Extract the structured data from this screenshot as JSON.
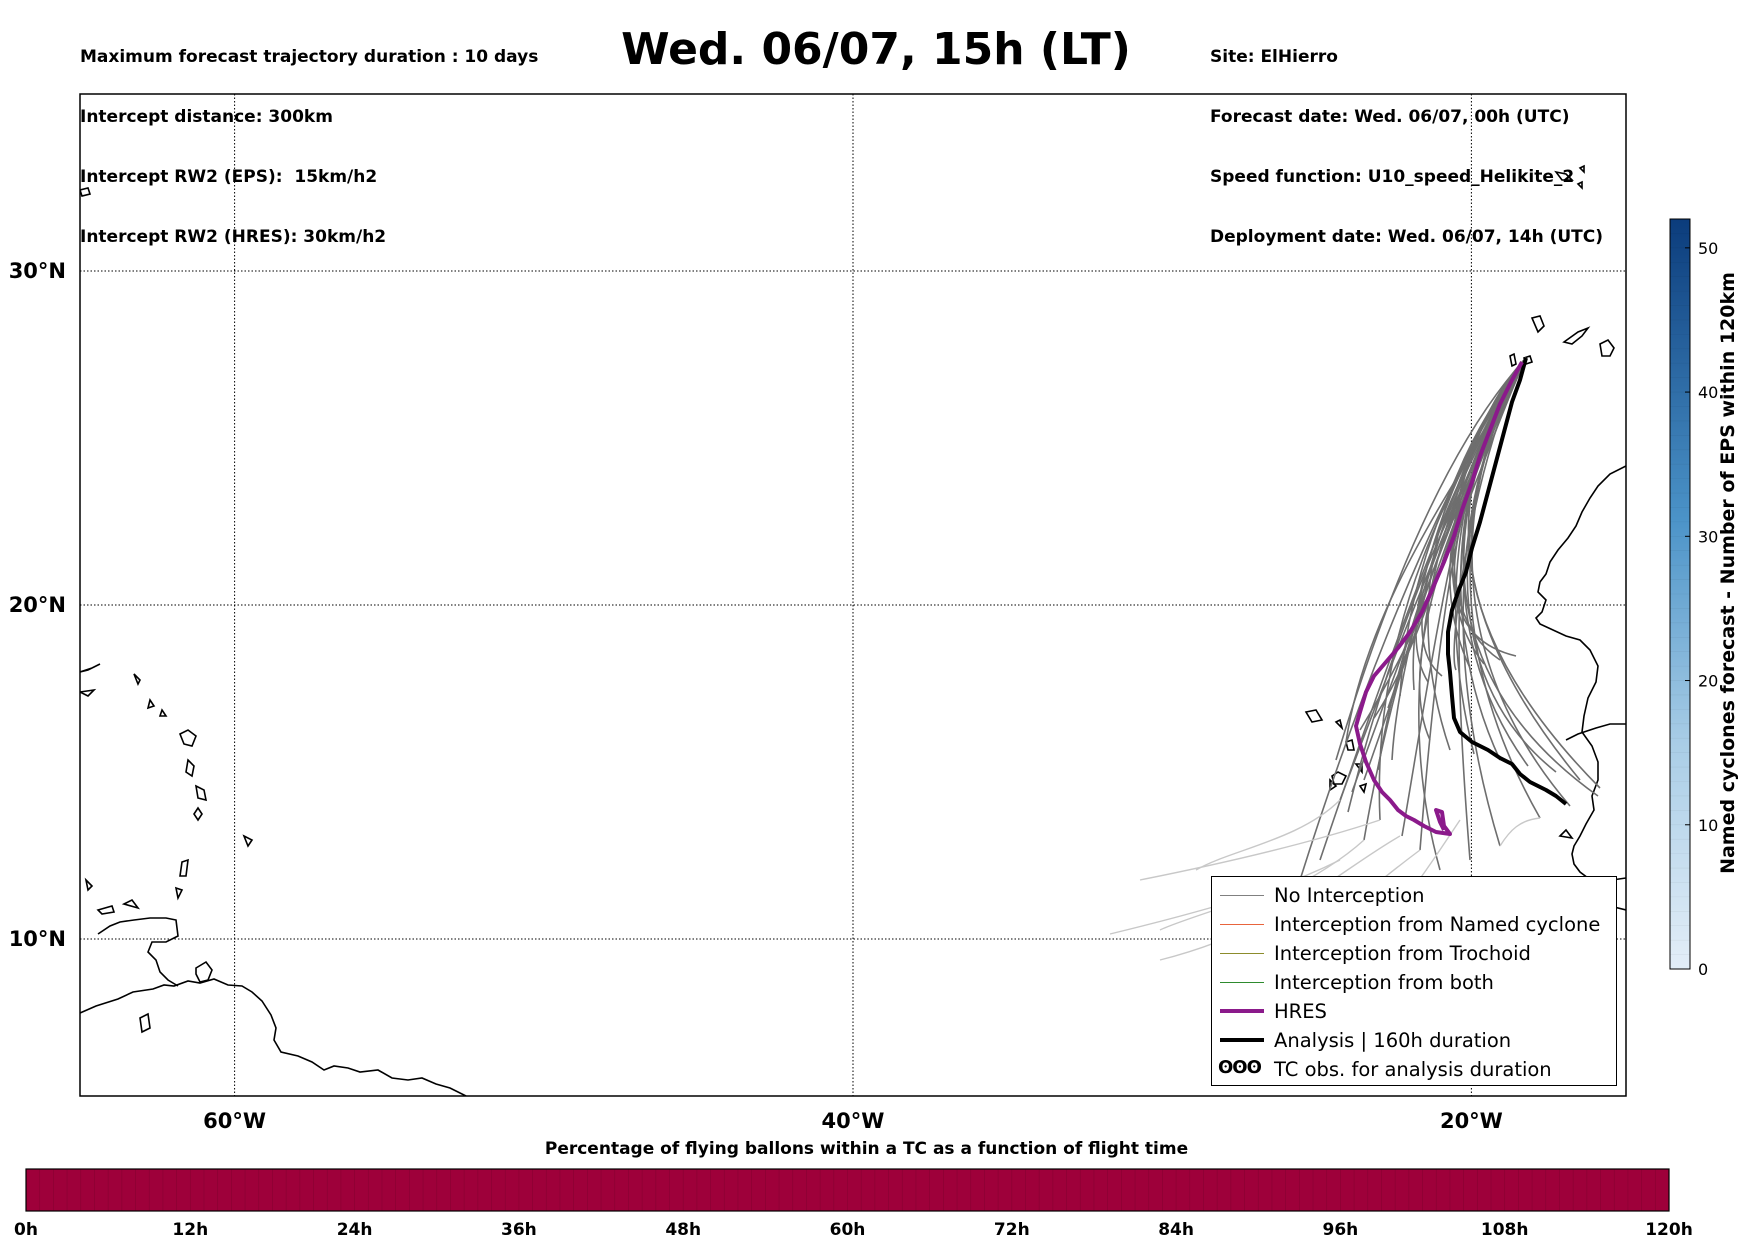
{
  "header_left": [
    "Maximum forecast trajectory duration : 10 days",
    "Intercept distance: 300km",
    "Intercept RW2 (EPS):  15km/h2",
    "Intercept RW2 (HRES): 30km/h2"
  ],
  "title": "Wed. 06/07, 15h (LT)",
  "header_right": [
    "Site: ElHierro",
    "Forecast date: Wed. 06/07, 00h (UTC)",
    "Speed function: U10_speed_Helikite_2",
    "Deployment date: Wed. 06/07, 14h (UTC)"
  ],
  "map": {
    "lat_labels": [
      {
        "lat": 30,
        "label": "30°N"
      },
      {
        "lat": 20,
        "label": "20°N"
      },
      {
        "lat": 10,
        "label": "10°N"
      }
    ],
    "lon_labels": [
      {
        "lon": -60,
        "label": "60°W"
      },
      {
        "lon": -40,
        "label": "40°W"
      },
      {
        "lon": -20,
        "label": "20°W"
      }
    ],
    "extent": {
      "lon_min": -65,
      "lon_max": -15,
      "lat_min": 5.3,
      "lat_max": 35.3
    }
  },
  "legend": [
    {
      "label": "No Interception",
      "color": "#808080",
      "width": 1.5
    },
    {
      "label": "Interception from Named cyclone",
      "color": "#e8643c",
      "width": 1.5
    },
    {
      "label": "Interception from Trochoid",
      "color": "#8c8c2c",
      "width": 1.5
    },
    {
      "label": "Interception from both",
      "color": "#2e8b2e",
      "width": 1.5
    },
    {
      "label": "HRES",
      "color": "#8b1a8b",
      "width": 4
    },
    {
      "label": "Analysis | 160h duration",
      "color": "#000000",
      "width": 4
    },
    {
      "label": "TC obs. for analysis duration",
      "symbol": "ʘʘʘ"
    }
  ],
  "colorbar_vertical": {
    "title": "Named cyclones forecast - Number of EPS within 120km",
    "ticks": [
      "0",
      "10",
      "20",
      "30",
      "40",
      "50"
    ],
    "min": 0,
    "max": 52,
    "color_low": "#e3eef8",
    "color_high": "#0b3c7c"
  },
  "colorbar_horizontal": {
    "title": "Percentage of flying ballons within a TC as a function of flight time",
    "ticks": [
      "0h",
      "12h",
      "24h",
      "36h",
      "48h",
      "60h",
      "72h",
      "84h",
      "96h",
      "108h",
      "120h"
    ],
    "color": "#9e003a"
  }
}
